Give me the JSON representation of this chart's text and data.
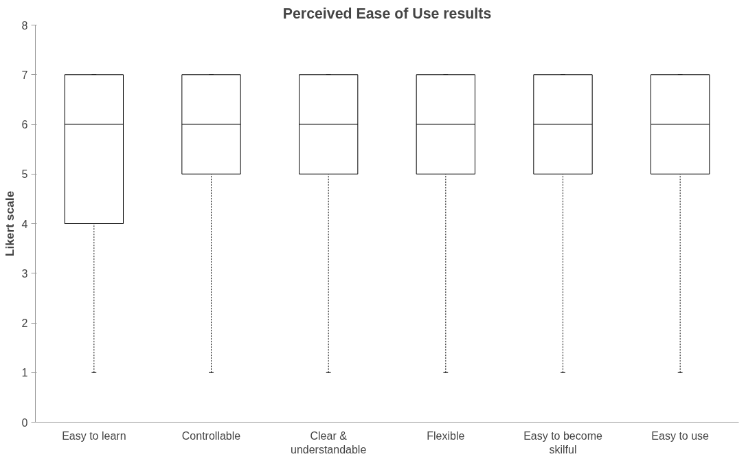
{
  "chart_data": {
    "type": "box",
    "title": "Perceived Ease of Use results",
    "ylabel": "Likert scale",
    "categories": [
      "Easy to learn",
      "Controllable",
      "Clear & understandable",
      "Flexible",
      "Easy to become skilful",
      "Easy to use"
    ],
    "series": [
      {
        "color": "#000000",
        "boxes": [
          {
            "low": 1,
            "q1": 4,
            "median": 6,
            "q3": 7,
            "high": 7
          },
          {
            "low": 1,
            "q1": 5,
            "median": 6,
            "q3": 7,
            "high": 7
          },
          {
            "low": 1,
            "q1": 5,
            "median": 6,
            "q3": 7,
            "high": 7
          },
          {
            "low": 1,
            "q1": 5,
            "median": 6,
            "q3": 7,
            "high": 7
          },
          {
            "low": 1,
            "q1": 5,
            "median": 6,
            "q3": 7,
            "high": 7
          },
          {
            "low": 1,
            "q1": 5,
            "median": 6,
            "q3": 7,
            "high": 7
          }
        ]
      }
    ],
    "ylim": [
      0,
      8
    ],
    "yticks": [
      0,
      1,
      2,
      3,
      4,
      5,
      6,
      7,
      8
    ],
    "grid": false
  }
}
